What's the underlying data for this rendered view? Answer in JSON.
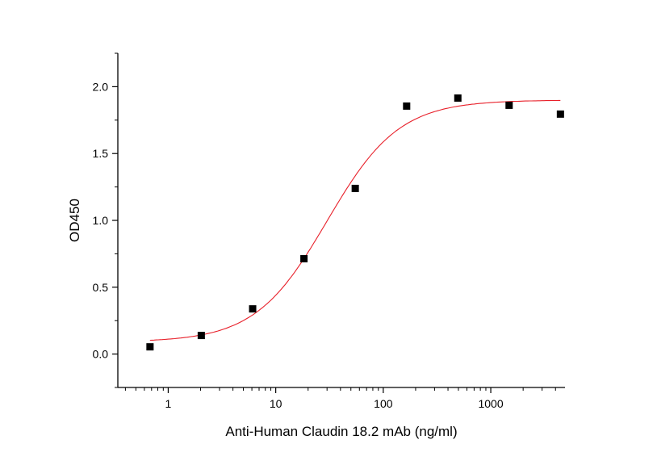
{
  "chart_data": {
    "type": "scatter",
    "title": "",
    "xlabel": "Anti-Human Claudin 18.2 mAb (ng/ml)",
    "ylabel": "OD450",
    "xscale": "log",
    "xlim": [
      0.34,
      4900
    ],
    "ylim": [
      -0.25,
      2.25
    ],
    "xticks": [
      1,
      10,
      100,
      1000
    ],
    "xtick_labels": [
      "1",
      "10",
      "100",
      "1000"
    ],
    "yticks": [
      0.0,
      0.5,
      1.0,
      1.5,
      2.0
    ],
    "ytick_labels": [
      "0.0",
      "0.5",
      "1.0",
      "1.5",
      "2.0"
    ],
    "grid": false,
    "legend": "none",
    "series": [
      {
        "marker": "square",
        "color": "#000000",
        "x": [
          0.677,
          2.03,
          6.1,
          18.3,
          54.9,
          165,
          494,
          1481,
          4444
        ],
        "y": [
          0.054,
          0.139,
          0.338,
          0.713,
          1.239,
          1.855,
          1.915,
          1.861,
          1.795
        ]
      }
    ],
    "fit": {
      "model": "4PL",
      "color": "#e8202a",
      "bottom": 0.09,
      "top": 1.9,
      "ec50": 30,
      "hill": 1.3
    }
  }
}
